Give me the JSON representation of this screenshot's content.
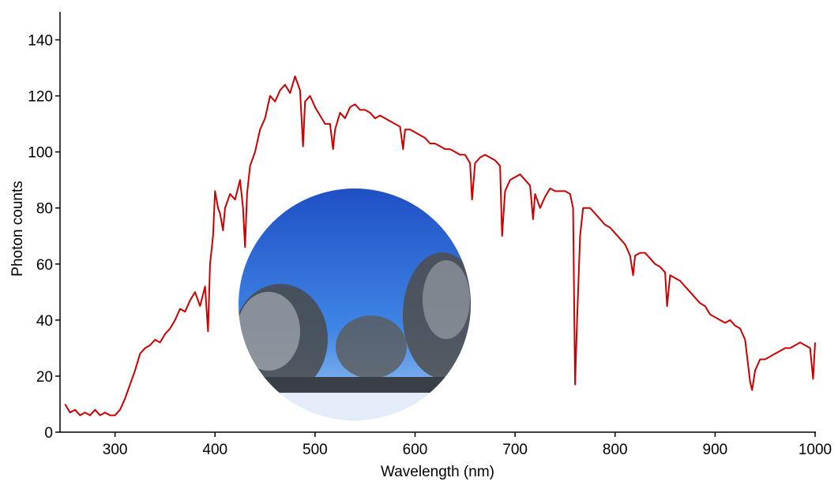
{
  "chart_data": {
    "type": "line",
    "x_label": "Wavelength (nm)",
    "y_label": "Photon counts",
    "xlim": [
      245,
      1000
    ],
    "ylim": [
      0,
      150
    ],
    "xticks": [
      300,
      400,
      500,
      600,
      700,
      800,
      900,
      1000
    ],
    "yticks": [
      0,
      20,
      40,
      60,
      80,
      100,
      120,
      140
    ],
    "grid": false,
    "x": [
      250,
      255,
      260,
      265,
      270,
      275,
      280,
      285,
      290,
      295,
      300,
      305,
      310,
      315,
      320,
      325,
      330,
      335,
      340,
      345,
      350,
      355,
      360,
      365,
      370,
      375,
      380,
      385,
      390,
      393,
      395,
      398,
      400,
      403,
      405,
      408,
      410,
      415,
      420,
      425,
      428,
      430,
      432,
      435,
      440,
      445,
      450,
      455,
      460,
      465,
      470,
      475,
      480,
      485,
      488,
      490,
      495,
      500,
      505,
      510,
      515,
      518,
      520,
      525,
      530,
      535,
      540,
      545,
      550,
      555,
      560,
      565,
      570,
      575,
      580,
      585,
      588,
      590,
      595,
      600,
      605,
      610,
      615,
      620,
      625,
      630,
      635,
      640,
      645,
      650,
      655,
      657,
      660,
      665,
      670,
      675,
      680,
      685,
      687,
      690,
      695,
      700,
      705,
      710,
      715,
      718,
      720,
      725,
      730,
      735,
      740,
      745,
      750,
      755,
      758,
      760,
      762,
      765,
      768,
      770,
      775,
      780,
      785,
      790,
      795,
      800,
      805,
      810,
      815,
      818,
      820,
      825,
      830,
      835,
      840,
      845,
      850,
      852,
      855,
      860,
      865,
      870,
      875,
      880,
      885,
      890,
      895,
      900,
      905,
      910,
      915,
      920,
      925,
      930,
      935,
      937,
      940,
      945,
      950,
      955,
      960,
      965,
      970,
      975,
      980,
      985,
      990,
      995,
      998,
      1000
    ],
    "series": [
      {
        "color": "#cc0000",
        "values": [
          10,
          7,
          8,
          6,
          7,
          6,
          8,
          6,
          7,
          6,
          6,
          8,
          12,
          17,
          22,
          28,
          30,
          31,
          33,
          32,
          35,
          37,
          40,
          44,
          43,
          47,
          50,
          45,
          52,
          36,
          60,
          70,
          86,
          80,
          78,
          72,
          80,
          85,
          83,
          90,
          80,
          66,
          85,
          95,
          100,
          108,
          112,
          120,
          118,
          122,
          124,
          121,
          127,
          122,
          102,
          118,
          120,
          116,
          113,
          110,
          110,
          101,
          108,
          114,
          112,
          116,
          117,
          115,
          115,
          114,
          112,
          113,
          112,
          111,
          110,
          109,
          101,
          108,
          108,
          107,
          106,
          105,
          103,
          103,
          102,
          101,
          101,
          100,
          99,
          99,
          96,
          83,
          96,
          98,
          99,
          98,
          97,
          95,
          70,
          86,
          90,
          91,
          92,
          90,
          88,
          76,
          85,
          80,
          84,
          87,
          86,
          86,
          86,
          85,
          80,
          17,
          40,
          70,
          80,
          80,
          80,
          78,
          76,
          74,
          73,
          71,
          69,
          67,
          63,
          56,
          63,
          64,
          64,
          62,
          60,
          59,
          57,
          45,
          56,
          55,
          54,
          52,
          50,
          48,
          46,
          45,
          42,
          41,
          40,
          39,
          40,
          38,
          37,
          33,
          18,
          15,
          22,
          26,
          26,
          27,
          28,
          29,
          30,
          30,
          31,
          32,
          31,
          30,
          19,
          32
        ]
      }
    ]
  }
}
